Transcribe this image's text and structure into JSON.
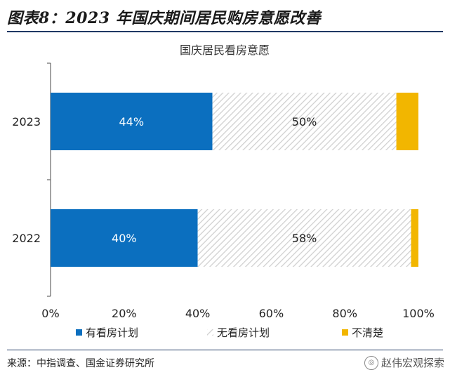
{
  "figure": {
    "title": "图表8：2023 年国庆期间居民购房意愿改善",
    "source": "来源：中指调查、国金证券研究所",
    "watermark": "赵伟宏观探索",
    "watermark_icon": "wechat-icon"
  },
  "chart_data": {
    "type": "bar",
    "orientation": "horizontal",
    "stacked": true,
    "title": "国庆居民看房意愿",
    "categories": [
      "2023",
      "2022"
    ],
    "series": [
      {
        "name": "有看房计划",
        "values": [
          44,
          40
        ],
        "labels": [
          "44%",
          "40%"
        ],
        "color": "#0b6fbf",
        "pattern": "solid",
        "label_color": "#ffffff"
      },
      {
        "name": "无看房计划",
        "values": [
          50,
          58
        ],
        "labels": [
          "50%",
          "58%"
        ],
        "color": "#d9d9d9",
        "pattern": "diagonal-hatch",
        "label_color": "#222222"
      },
      {
        "name": "不清楚",
        "values": [
          6,
          2
        ],
        "labels": [
          "",
          ""
        ],
        "color": "#f2b600",
        "pattern": "solid",
        "label_color": "#222222"
      }
    ],
    "xlim": [
      0,
      100
    ],
    "xticks": [
      "0%",
      "20%",
      "40%",
      "60%",
      "80%",
      "100%"
    ],
    "xtick_values": [
      0,
      20,
      40,
      60,
      80,
      100
    ],
    "grid": false,
    "legend_position": "bottom"
  }
}
